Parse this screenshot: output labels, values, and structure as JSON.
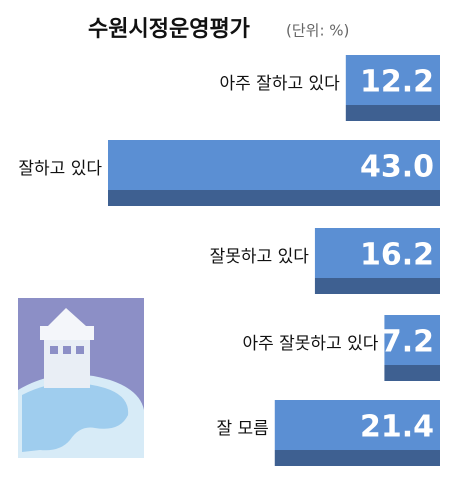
{
  "chart_data": {
    "type": "hbar",
    "title": "수원시정운영평가",
    "subtitle": "(단위: %)",
    "categories": [
      "아주 잘하고 있다",
      "잘하고 있다",
      "잘못하고 있다",
      "아주 잘못하고 있다",
      "잘 모름"
    ],
    "values": [
      12.2,
      43.0,
      16.2,
      7.2,
      21.4
    ],
    "value_labels": [
      "12.2",
      "43.0",
      "16.2",
      "7.2",
      "21.4"
    ],
    "color": "#5b8fd3",
    "shade_color": "#3e6091"
  }
}
